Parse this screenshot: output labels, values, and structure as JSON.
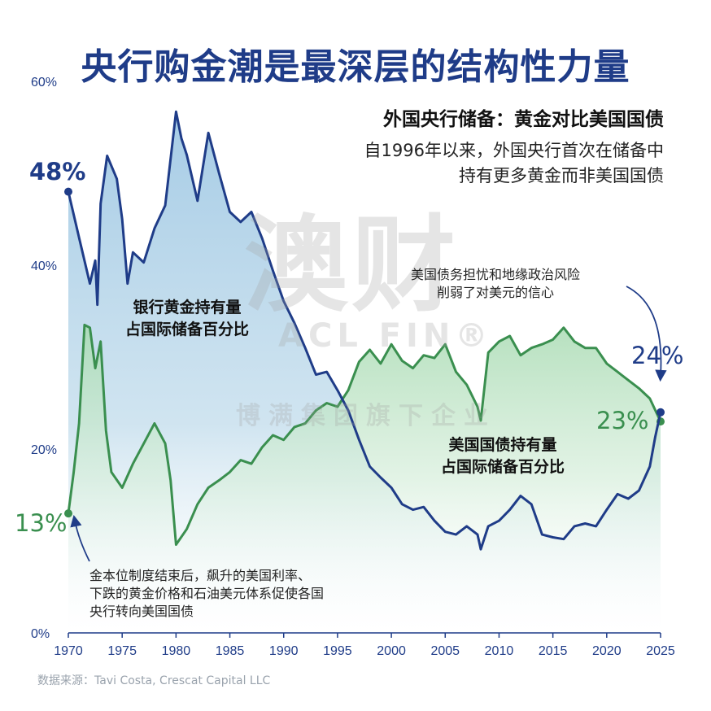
{
  "title": "央行购金潮是最深层的结构性力量",
  "subtitle": "外国央行储备：黄金对比美国国债",
  "description": [
    "自1996年以来，外国央行首次在储备中",
    "持有更多黄金而非美国国债"
  ],
  "source": "数据来源：Tavi Costa, Crescat Capital LLC",
  "annotations": {
    "gold_area": [
      "银行黄金持有量",
      "占国际储备百分比"
    ],
    "treasury_area": [
      "美国国债持有量",
      "占国际储备百分比"
    ],
    "risk_note": [
      "美国债务担忧和地缘政治风险",
      "削弱了对美元的信心"
    ],
    "history_note": [
      "金本位制度结束后，飙升的美国利率、",
      "下跌的黄金价格和石油美元体系促使各国",
      "央行转向美国国债"
    ],
    "gold_start": "48%",
    "gold_end": "24%",
    "treasury_start": "13%",
    "treasury_end": "23%"
  },
  "watermark": {
    "main": "澳财",
    "brand": "ACL FIN®",
    "tagline": "博满集团旗下企业"
  },
  "colors": {
    "gold": "#1f3c88",
    "treasury": "#3a8f4f",
    "title": "#1f3c88"
  },
  "chart_data": {
    "type": "line",
    "title": "外国央行储备：黄金对比美国国债",
    "xlabel": "",
    "ylabel": "",
    "xlim": [
      1970,
      2025
    ],
    "ylim": [
      0,
      60
    ],
    "x_ticks": [
      "1970",
      "1975",
      "1980",
      "1985",
      "1990",
      "1995",
      "2000",
      "2005",
      "2010",
      "2015",
      "2020",
      "2025"
    ],
    "y_ticks": [
      "0%",
      "20%",
      "40%",
      "60%"
    ],
    "grid": false,
    "series": [
      {
        "name": "银行黄金持有量占国际储备百分比",
        "color": "#1f3c88",
        "x": [
          1970,
          1971,
          1972,
          1972.5,
          1972.7,
          1973,
          1973.6,
          1974.5,
          1975,
          1975.5,
          1976,
          1977,
          1978,
          1979,
          1980,
          1980.5,
          1981,
          1982,
          1983,
          1984,
          1985,
          1986,
          1987,
          1988,
          1989,
          1990,
          1991,
          1992,
          1993,
          1994,
          1995,
          1996,
          1997,
          1998,
          1999,
          2000,
          2001,
          2002,
          2003,
          2004,
          2005,
          2006,
          2007,
          2008,
          2008.3,
          2009,
          2010,
          2011,
          2012,
          2013,
          2014,
          2015,
          2016,
          2017,
          2018,
          2019,
          2020,
          2021,
          2022,
          2023,
          2024,
          2024.5,
          2025
        ],
        "y": [
          48,
          43,
          38,
          40.5,
          35.7,
          46.7,
          51.9,
          49.4,
          45,
          38,
          41.4,
          40.3,
          44,
          46.5,
          56.7,
          53.8,
          52,
          47,
          54.4,
          50,
          45.8,
          44.7,
          45.8,
          42.9,
          39.4,
          36.1,
          33.7,
          31,
          28.1,
          28.4,
          26.4,
          24.2,
          21,
          18.1,
          16.9,
          15.8,
          14,
          13.4,
          13.7,
          12.2,
          11,
          10.7,
          11.6,
          10.7,
          9.1,
          11.6,
          12.2,
          13.4,
          14.9,
          14,
          10.7,
          10.4,
          10.2,
          11.6,
          11.9,
          11.6,
          13.4,
          15.1,
          14.6,
          15.5,
          18.1,
          21.3,
          24
        ]
      },
      {
        "name": "美国国债持有量占国际储备百分比",
        "color": "#3a8f4f",
        "x": [
          1970,
          1970.5,
          1971,
          1971.5,
          1972,
          1972.5,
          1973,
          1973.5,
          1974,
          1975,
          1976,
          1977,
          1978,
          1979,
          1979.5,
          1980,
          1981,
          1982,
          1983,
          1984,
          1985,
          1986,
          1987,
          1988,
          1989,
          1990,
          1991,
          1992,
          1993,
          1994,
          1995,
          1996,
          1997,
          1998,
          1999,
          2000,
          2001,
          2002,
          2003,
          2004,
          2005,
          2006,
          2007,
          2008,
          2008.3,
          2009,
          2010,
          2011,
          2012,
          2013,
          2014,
          2015,
          2016,
          2017,
          2018,
          2019,
          2020,
          2021,
          2022,
          2023,
          2024,
          2025
        ],
        "y": [
          13,
          17.5,
          22.8,
          33.5,
          33.2,
          28.8,
          31.7,
          22,
          17.5,
          15.8,
          18.4,
          20.6,
          22.8,
          20.6,
          16.6,
          9.6,
          11.3,
          14,
          15.8,
          16.6,
          17.5,
          18.8,
          18.4,
          20.2,
          21.5,
          21,
          22.4,
          22.8,
          24.2,
          25,
          24.6,
          26.4,
          29.5,
          30.8,
          29.3,
          31.4,
          29.6,
          28.8,
          30.2,
          29.9,
          31.4,
          28.4,
          27,
          24.6,
          23.1,
          30.5,
          31.7,
          32.3,
          30.2,
          31,
          31.4,
          31.9,
          33.2,
          31.7,
          31,
          31,
          29.3,
          28.4,
          27.5,
          26.6,
          25.5,
          23
        ]
      }
    ]
  }
}
